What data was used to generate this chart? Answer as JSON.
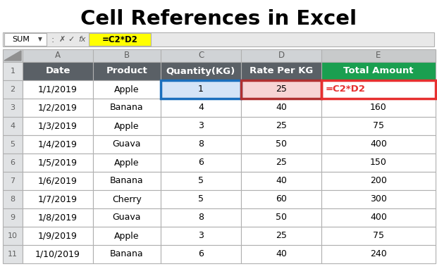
{
  "title": "Cell References in Excel",
  "formula_bar_name": "SUM",
  "formula_bar_formula": "=C2*D2",
  "col_letters": [
    "A",
    "B",
    "C",
    "D",
    "E"
  ],
  "row_numbers": [
    "1",
    "2",
    "3",
    "4",
    "5",
    "6",
    "7",
    "8",
    "9",
    "10",
    "11"
  ],
  "headers": [
    "Date",
    "Product",
    "Quantity(KG)",
    "Rate Per KG",
    "Total Amount"
  ],
  "data": [
    [
      "1/1/2019",
      "Apple",
      "1",
      "25",
      "=C2*D2"
    ],
    [
      "1/2/2019",
      "Banana",
      "4",
      "40",
      "160"
    ],
    [
      "1/3/2019",
      "Apple",
      "3",
      "25",
      "75"
    ],
    [
      "1/4/2019",
      "Guava",
      "8",
      "50",
      "400"
    ],
    [
      "1/5/2019",
      "Apple",
      "6",
      "25",
      "150"
    ],
    [
      "1/6/2019",
      "Banana",
      "5",
      "40",
      "200"
    ],
    [
      "1/7/2019",
      "Cherry",
      "5",
      "60",
      "300"
    ],
    [
      "1/8/2019",
      "Guava",
      "8",
      "50",
      "400"
    ],
    [
      "1/9/2019",
      "Apple",
      "3",
      "25",
      "75"
    ],
    [
      "1/10/2019",
      "Banana",
      "6",
      "40",
      "240"
    ]
  ],
  "header_bg": "#5a6066",
  "header_text": "#ffffff",
  "total_amount_header_bg": "#1a9f50",
  "total_amount_header_text": "#ffffff",
  "formula_cell_text": "#e63030",
  "formula_bg": "#ffff00",
  "c2_cell_bg": "#d4e4f7",
  "d2_cell_bg": "#f7d4d4",
  "c2_border_color": "#1a6fbd",
  "d2_border_color": "#b03030",
  "e2_border_color": "#e63030",
  "col_header_bg": "#d0d3d6",
  "col_header_text": "#606060",
  "row_num_bg": "#e0e2e4",
  "row_num_text": "#606060",
  "grid_color": "#b0b0b0",
  "title_fontsize": 21,
  "cell_fontsize": 9,
  "bg_color": "#ffffff"
}
